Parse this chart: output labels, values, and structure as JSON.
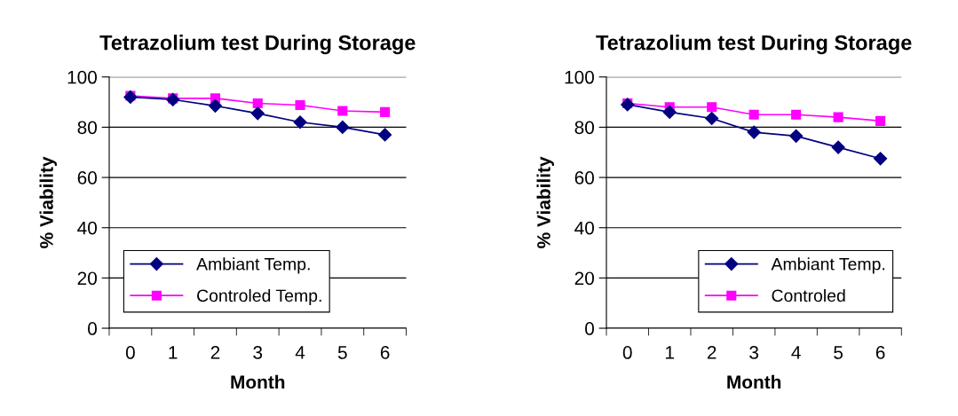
{
  "chart_data": [
    {
      "type": "line",
      "title": "Tetrazolium test During Storage",
      "xlabel": "Month",
      "ylabel": "% Viability",
      "categories": [
        "0",
        "1",
        "2",
        "3",
        "4",
        "5",
        "6"
      ],
      "series": [
        {
          "name": "Ambiant Temp.",
          "color": "#000080",
          "marker": "diamond",
          "values": [
            92,
            91,
            88.5,
            85.5,
            82,
            80,
            77
          ]
        },
        {
          "name": "Controled Temp.",
          "color": "#ff00ff",
          "marker": "square",
          "values": [
            92.5,
            91.5,
            91.5,
            89.5,
            88.8,
            86.5,
            86
          ]
        }
      ],
      "ylim": [
        0,
        100
      ],
      "yticks": [
        0,
        20,
        40,
        60,
        80,
        100
      ],
      "grid": "y",
      "legend": "bottom left"
    },
    {
      "type": "line",
      "title": "Tetrazolium test During Storage",
      "xlabel": "Month",
      "ylabel": "% Viability",
      "categories": [
        "0",
        "1",
        "2",
        "3",
        "4",
        "5",
        "6"
      ],
      "series": [
        {
          "name": "Ambiant Temp.",
          "color": "#000080",
          "marker": "diamond",
          "values": [
            89,
            86,
            83.5,
            78,
            76.5,
            72,
            67.5
          ]
        },
        {
          "name": "Controled",
          "color": "#ff00ff",
          "marker": "square",
          "values": [
            89.5,
            88,
            88,
            85,
            85,
            84,
            82.5
          ]
        }
      ],
      "ylim": [
        0,
        100
      ],
      "yticks": [
        0,
        20,
        40,
        60,
        80,
        100
      ],
      "grid": "y",
      "legend": "bottom right"
    }
  ]
}
